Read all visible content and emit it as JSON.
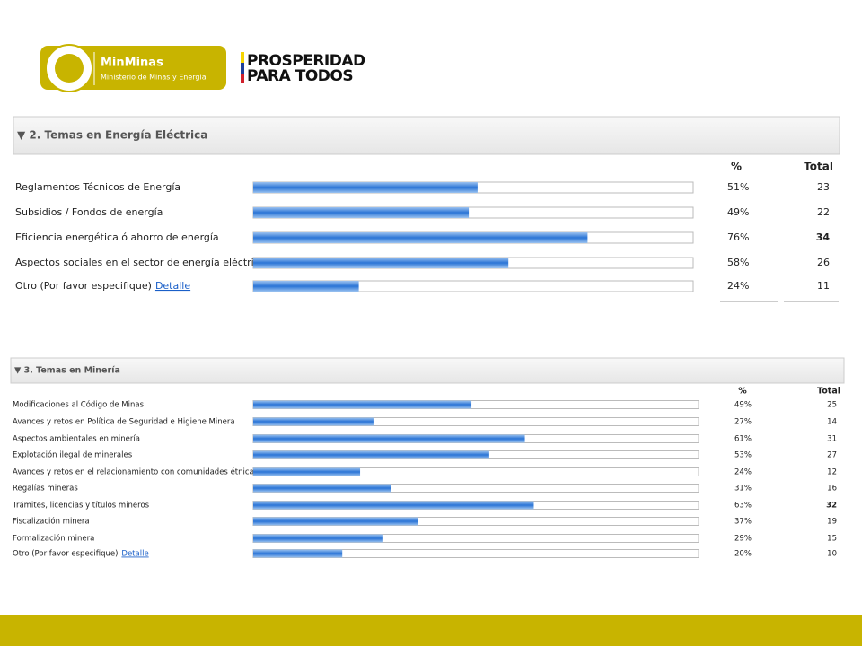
{
  "header": {
    "ministry_short": "MinMinas",
    "ministry_full": "Ministerio de Minas y Energía",
    "slogan_line1": "PROSPERIDAD",
    "slogan_line2": "PARA TODOS"
  },
  "sections": [
    {
      "title": "▼ 2. Temas en Energía Eléctrica",
      "col_percent": "%",
      "col_total": "Total",
      "rows": [
        {
          "label": "Reglamentos Técnicos de Energía",
          "percent": 51,
          "percent_label": "51%",
          "total": 23
        },
        {
          "label": "Subsidios / Fondos de energía",
          "percent": 49,
          "percent_label": "49%",
          "total": 22
        },
        {
          "label": "Eficiencia energética ó ahorro de energía",
          "percent": 76,
          "percent_label": "76%",
          "total": 34
        },
        {
          "label": "Aspectos sociales en el sector de energía eléctrica",
          "percent": 58,
          "percent_label": "58%",
          "total": 26
        },
        {
          "label": "Otro (Por favor especifique)",
          "link": "Detalle",
          "percent": 24,
          "percent_label": "24%",
          "total": 11
        }
      ]
    },
    {
      "title": "▼ 3. Temas en Minería",
      "col_percent": "%",
      "col_total": "Total",
      "rows": [
        {
          "label": "Modificaciones al Código de Minas",
          "percent": 49,
          "percent_label": "49%",
          "total": 25
        },
        {
          "label": "Avances y retos en Política de Seguridad e Higiene Minera",
          "percent": 27,
          "percent_label": "27%",
          "total": 14
        },
        {
          "label": "Aspectos ambientales en minería",
          "percent": 61,
          "percent_label": "61%",
          "total": 31
        },
        {
          "label": "Explotación ilegal de minerales",
          "percent": 53,
          "percent_label": "53%",
          "total": 27
        },
        {
          "label": "Avances y retos en el relacionamiento con comunidades étnicas",
          "percent": 24,
          "percent_label": "24%",
          "total": 12
        },
        {
          "label": "Regalías mineras",
          "percent": 31,
          "percent_label": "31%",
          "total": 16
        },
        {
          "label": "Trámites, licencias y títulos mineros",
          "percent": 63,
          "percent_label": "63%",
          "total": 32
        },
        {
          "label": "Fiscalización minera",
          "percent": 37,
          "percent_label": "37%",
          "total": 19
        },
        {
          "label": "Formalización minera",
          "percent": 29,
          "percent_label": "29%",
          "total": 15
        },
        {
          "label": "Otro (Por favor especifique)",
          "link": "Detalle",
          "percent": 20,
          "percent_label": "20%",
          "total": 10
        }
      ]
    }
  ]
}
